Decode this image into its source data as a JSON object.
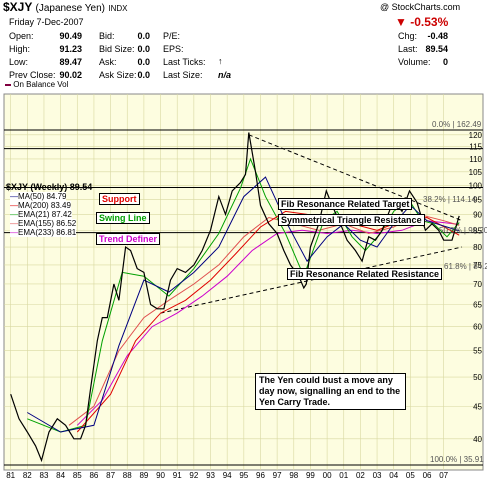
{
  "header": {
    "symbol": "$XJY",
    "name": "(Japanese Yen)",
    "exchange": "INDX",
    "copyright": "@ StockCharts.com",
    "date": "Friday  7-Dec-2007",
    "open_label": "Open:",
    "open": "90.49",
    "high_label": "High:",
    "high": "91.23",
    "low_label": "Low:",
    "low": "89.47",
    "prev_label": "Prev Close:",
    "prev": "90.02",
    "bid_label": "Bid:",
    "bid": "0.0",
    "bidsize_label": "Bid Size:",
    "bidsize": "0.0",
    "ask_label": "Ask:",
    "ask": "0.0",
    "asksize_label": "Ask Size:",
    "asksize": "0.0",
    "pe_label": "P/E:",
    "eps_label": "EPS:",
    "lastticks_label": "Last Ticks:",
    "lastsize_label": "Last Size:",
    "lastsize": "n/a",
    "change_pct": "-0.53%",
    "chg_label": "Chg:",
    "chg": "-0.48",
    "last_label": "Last:",
    "last": "89.54",
    "volume_label": "Volume:",
    "volume": "0"
  },
  "obv_label": "On Balance Vol",
  "colors": {
    "price": "#000000",
    "ma50": "#000080",
    "ma200": "#e00000",
    "ema21": "#00a000",
    "ema155": "#e05050",
    "ema233": "#cc00cc",
    "plot_bg": "#fdfde0",
    "grid": "#d8d8a0",
    "down": "#cc0000"
  },
  "legend": {
    "title": "$XJY (Weekly) 89.54",
    "items": [
      {
        "label": "MA(50) 84.79"
      },
      {
        "label": "MA(200) 83.49"
      },
      {
        "label": "EMA(21) 87.42"
      },
      {
        "label": "EMA(155) 86.52"
      },
      {
        "label": "EMA(233) 86.81"
      }
    ]
  },
  "annotations": {
    "support": "Support",
    "swing": "Swing Line",
    "trend": "Trend Definer",
    "fib_target": "Fib Resonance Related Target",
    "triangle": "Symmetrical Triangle Resistance",
    "fib_resistance": "Fib Resonance Related Resistance",
    "note": "The Yen could bust a move any day now, signalling an end to the Yen Carry Trade."
  },
  "fib_labels": {
    "f0": "0.0% | 162.49",
    "f382": "38.2% | 114.14",
    "f50": "50.0% | 99.20",
    "f618": "61.8% | 84.26",
    "f100": "100.0% | 35.91"
  },
  "chart_data": {
    "type": "line",
    "title": "$XJY (Weekly) 89.54",
    "xlabel": "",
    "ylabel": "",
    "x_ticks": [
      "81",
      "82",
      "83",
      "84",
      "85",
      "86",
      "87",
      "88",
      "89",
      "90",
      "91",
      "92",
      "93",
      "94",
      "95",
      "96",
      "97",
      "98",
      "99",
      "00",
      "01",
      "02",
      "03",
      "04",
      "05",
      "06",
      "07"
    ],
    "y_ticks": [
      40,
      45,
      50,
      55,
      60,
      65,
      70,
      75,
      80,
      85,
      90,
      95,
      100,
      105,
      110,
      115,
      120
    ],
    "ylim": [
      36,
      123
    ],
    "xlim": [
      1980.6,
      2008.1
    ],
    "scale": "log",
    "grid": true,
    "series": [
      {
        "name": "$XJY",
        "x": [
          1981.0,
          1981.5,
          1982.0,
          1982.5,
          1982.85,
          1983.3,
          1983.8,
          1984.3,
          1984.8,
          1985.2,
          1985.5,
          1985.8,
          1986.2,
          1986.5,
          1986.8,
          1987.2,
          1987.5,
          1987.9,
          1988.2,
          1988.6,
          1989.0,
          1989.4,
          1989.8,
          1990.2,
          1990.6,
          1991.0,
          1991.5,
          1992.0,
          1992.5,
          1993.0,
          1993.5,
          1993.9,
          1994.3,
          1994.8,
          1995.1,
          1995.3,
          1995.7,
          1996.0,
          1996.5,
          1997.0,
          1997.4,
          1997.8,
          1998.3,
          1998.6,
          1998.75,
          1999.0,
          1999.5,
          1999.95,
          2000.3,
          2000.8,
          2001.2,
          2001.7,
          2002.1,
          2002.5,
          2002.9,
          2003.3,
          2003.8,
          2004.1,
          2004.5,
          2004.95,
          2005.4,
          2005.9,
          2006.3,
          2006.7,
          2007.0,
          2007.5,
          2007.93
        ],
        "values": [
          47,
          43,
          41,
          39,
          37,
          41,
          43,
          42,
          40,
          40,
          42,
          48,
          57,
          62,
          62,
          70,
          66,
          80,
          79,
          74,
          73,
          65,
          64,
          64,
          71,
          74,
          73,
          75,
          79,
          85,
          96,
          90,
          98,
          101,
          104,
          121,
          105,
          93,
          87,
          84,
          79,
          75,
          72,
          69,
          70,
          80,
          87,
          98,
          93,
          87,
          82,
          79,
          76,
          83,
          82,
          85,
          92,
          94,
          91,
          98,
          94,
          85,
          87,
          85,
          82,
          82,
          89.54
        ]
      },
      {
        "name": "MA(50)",
        "x": [
          1982.0,
          1984.0,
          1986.0,
          1987.5,
          1989.0,
          1990.5,
          1992.0,
          1993.5,
          1995.0,
          1996.3,
          1997.5,
          1998.8,
          2000.0,
          2001.0,
          2002.0,
          2003.0,
          2004.0,
          2005.0,
          2006.0,
          2007.93
        ],
        "values": [
          44,
          41,
          42,
          56,
          71,
          68,
          73,
          80,
          96,
          103,
          88,
          76,
          83,
          87,
          82,
          80,
          87,
          93,
          88,
          84.79
        ]
      },
      {
        "name": "MA(200)",
        "x": [
          1985.0,
          1987.0,
          1988.5,
          1990.0,
          1991.5,
          1993.0,
          1994.5,
          1996.0,
          1997.5,
          1998.8,
          2000.0,
          2001.5,
          2003.0,
          2004.5,
          2006.0,
          2007.93
        ],
        "values": [
          41,
          47,
          57,
          63,
          66,
          71,
          78,
          86,
          91,
          90,
          87,
          87,
          85,
          88,
          89,
          83.49
        ]
      },
      {
        "name": "EMA(21)",
        "x": [
          1982.0,
          1984.0,
          1985.5,
          1986.5,
          1987.7,
          1989.0,
          1990.5,
          1992.0,
          1993.5,
          1994.8,
          1995.4,
          1996.3,
          1997.5,
          1998.6,
          1999.8,
          2000.6,
          2001.5,
          2002.3,
          2003.2,
          2004.0,
          2004.9,
          2005.7,
          2006.4,
          2007.2,
          2007.93
        ],
        "values": [
          43,
          41,
          42,
          57,
          73,
          72,
          67,
          74,
          84,
          99,
          110,
          96,
          84,
          72,
          88,
          91,
          83,
          79,
          84,
          91,
          95,
          88,
          87,
          83,
          87.42
        ]
      },
      {
        "name": "EMA(155)",
        "x": [
          1984.5,
          1986.0,
          1987.5,
          1989.0,
          1990.5,
          1992.0,
          1993.5,
          1995.0,
          1996.5,
          1998.0,
          1999.5,
          2001.0,
          2002.5,
          2004.0,
          2005.5,
          2007.0,
          2007.93
        ],
        "values": [
          42,
          45,
          55,
          62,
          66,
          70,
          75,
          83,
          89,
          87,
          85,
          87,
          84,
          86,
          90,
          88,
          86.52
        ]
      },
      {
        "name": "EMA(233)",
        "x": [
          1985.0,
          1986.5,
          1988.0,
          1989.5,
          1991.0,
          1992.5,
          1994.0,
          1995.5,
          1997.0,
          1998.5,
          2000.0,
          2001.5,
          2003.0,
          2004.5,
          2006.0,
          2007.93
        ],
        "values": [
          42,
          46,
          54,
          60,
          63,
          67,
          72,
          79,
          84,
          85,
          84,
          85,
          84,
          85,
          88,
          86.81
        ]
      }
    ],
    "fib_levels": [
      {
        "label": "0.0%",
        "value": 162.49
      },
      {
        "label": "38.2%",
        "value": 114.14
      },
      {
        "label": "50.0%",
        "value": 99.2
      },
      {
        "label": "61.8%",
        "value": 84.26
      },
      {
        "label": "100.0%",
        "value": 35.91
      }
    ],
    "trendlines": [
      {
        "name": "triangle-top",
        "x": [
          1995.3,
          2008.1
        ],
        "values": [
          120,
          88
        ]
      },
      {
        "name": "triangle-bottom",
        "x": [
          1990.0,
          2008.1
        ],
        "values": [
          63,
          80
        ]
      }
    ]
  }
}
